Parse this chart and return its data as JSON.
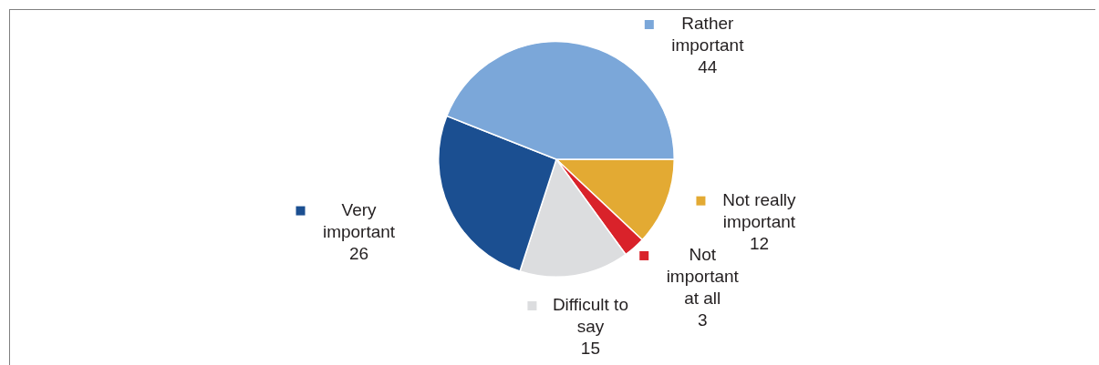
{
  "chart_data": {
    "type": "pie",
    "categories": [
      "Not really important",
      "Not important at all",
      "Difficult to say",
      "Very important",
      "Rather important"
    ],
    "values": [
      12,
      3,
      15,
      26,
      44
    ],
    "colors": [
      "#e3aa33",
      "#d9222a",
      "#dcdddf",
      "#1b4f91",
      "#7ba7d9"
    ],
    "data_labels": true,
    "legend": "right"
  }
}
